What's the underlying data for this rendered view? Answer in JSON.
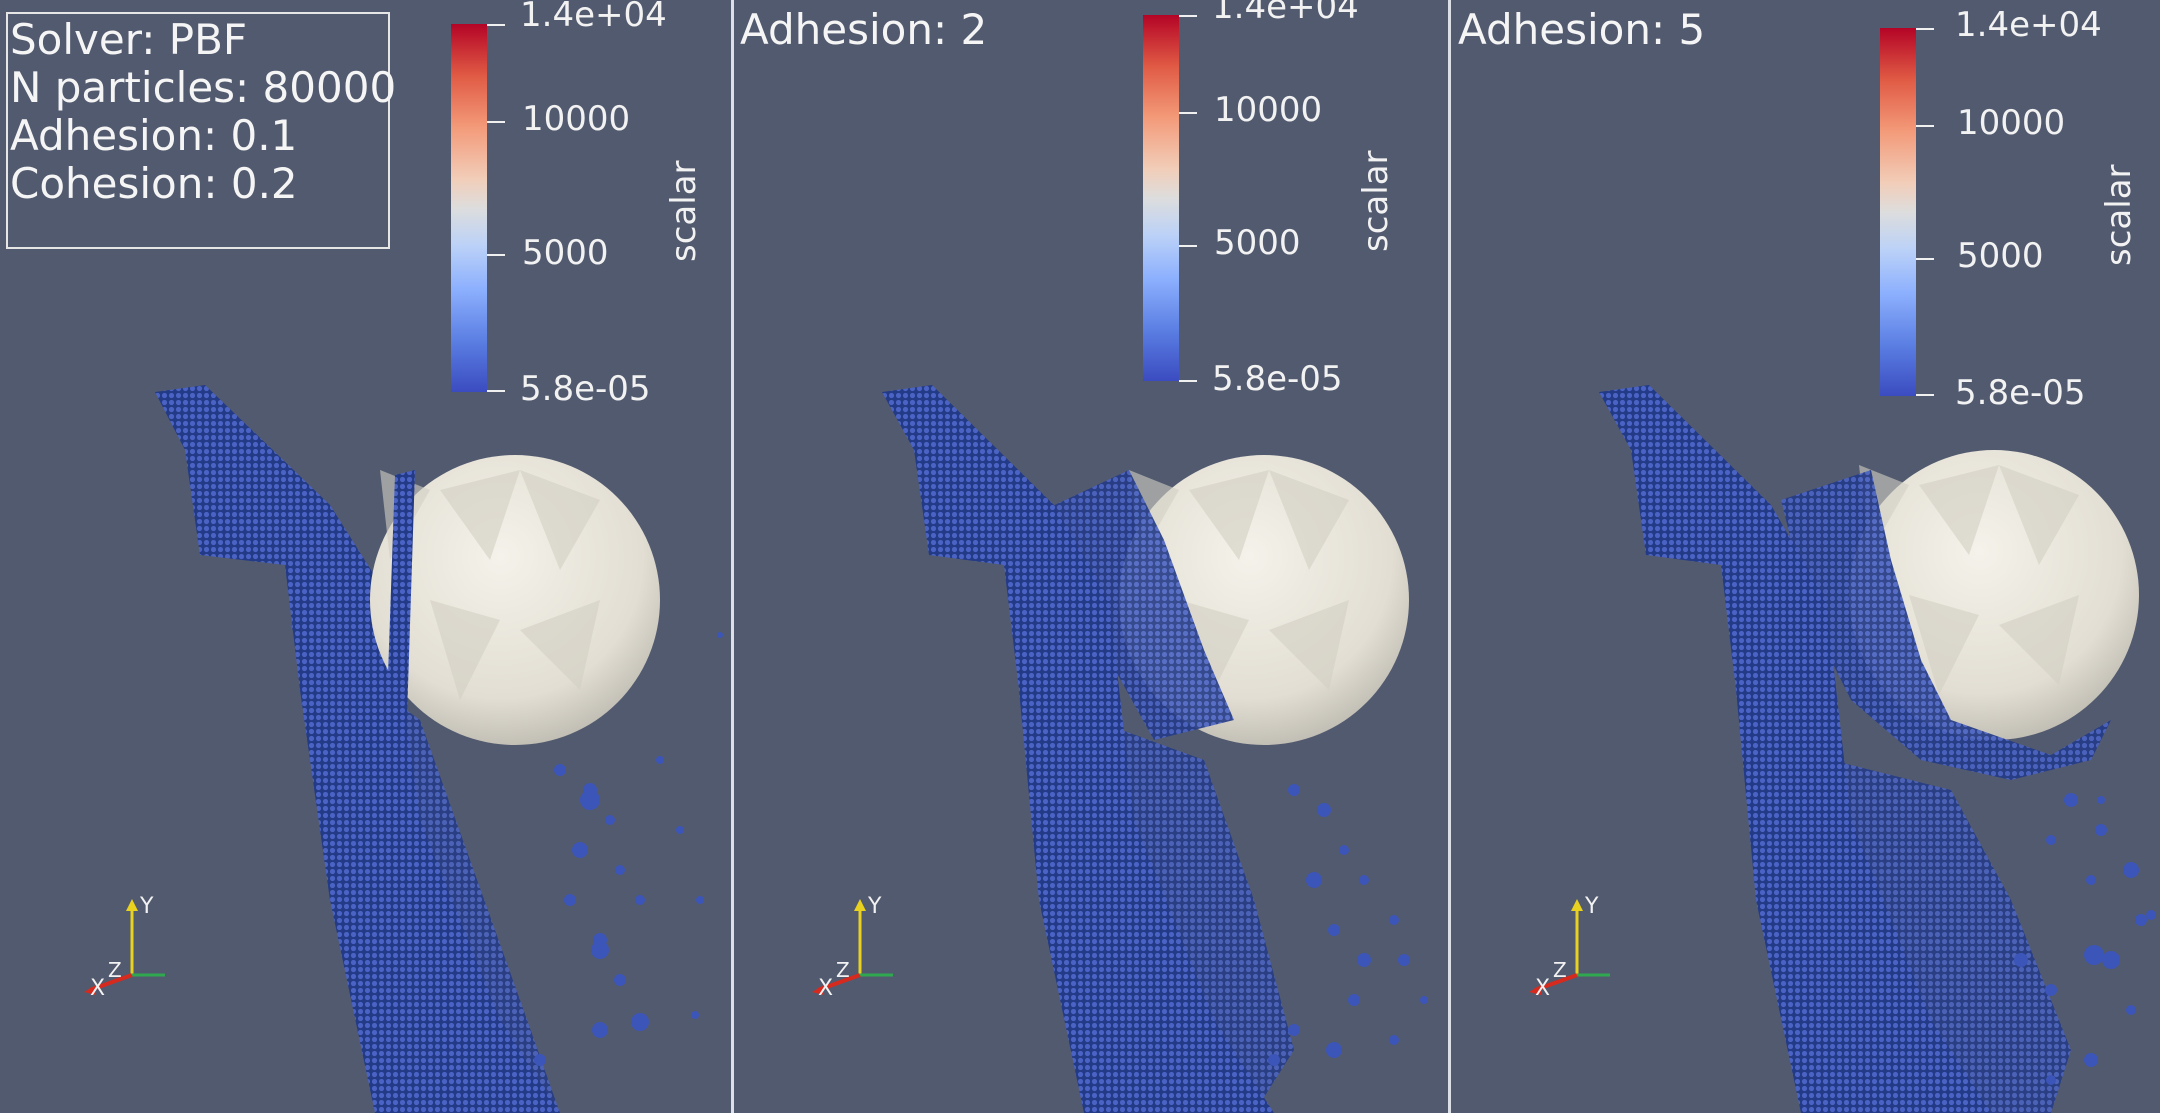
{
  "colorbar": {
    "title": "scalar",
    "ticks": [
      "1.4e+04",
      "10000",
      "5000",
      "5.8e-05"
    ],
    "colormap_colors": [
      "#b40426",
      "#f2cdb8",
      "#dddddd",
      "#8db0fe",
      "#3b4cc0"
    ]
  },
  "viewports": [
    {
      "info_lines": [
        "Solver: PBF",
        "N particles: 80000",
        "Adhesion: 0.1",
        "Cohesion: 0.2"
      ]
    },
    {
      "title": "Adhesion: 2"
    },
    {
      "title": "Adhesion: 5"
    }
  ],
  "orientation_axes": {
    "y_label": "Y",
    "z_label": "Z",
    "x_label": "X"
  },
  "colors": {
    "background": "#525a6f",
    "particles": "#2e4596",
    "sphere": "#e8e6df",
    "axis_x": "#d62a1f",
    "axis_y": "#e8d21f",
    "axis_z": "#2fa84f"
  }
}
